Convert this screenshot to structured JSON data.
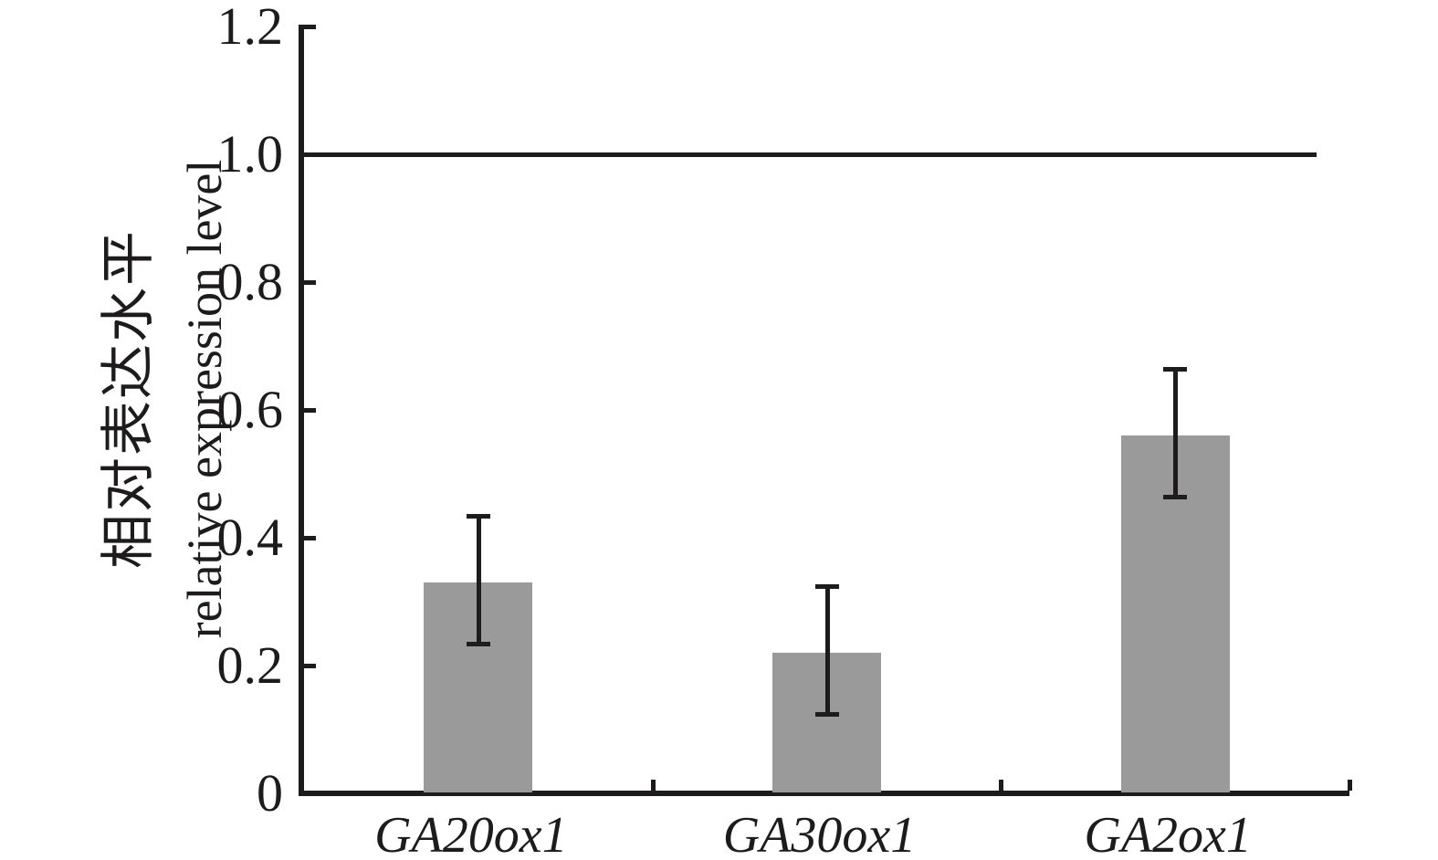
{
  "figure": {
    "background": "#ffffff",
    "ink_color": "#1d1b1c"
  },
  "y_axis": {
    "label_cn": "相对表达水平",
    "label_en": "relative expression level",
    "tick_labels": [
      "0",
      "0.2",
      "0.4",
      "0.6",
      "0.8",
      "1.0",
      "1.2"
    ],
    "tick_values": [
      0,
      0.2,
      0.4,
      0.6,
      0.8,
      1.0,
      1.2
    ]
  },
  "x_axis": {
    "categories": [
      "GA20ox1",
      "GA30ox1",
      "GA2ox1"
    ]
  },
  "chart_data": {
    "type": "bar",
    "title": "",
    "xlabel": "",
    "ylabel_cn": "相对表达水平",
    "ylabel_en": "relative expression level",
    "categories": [
      "GA20ox1",
      "GA30ox1",
      "GA2ox1"
    ],
    "values": [
      0.33,
      0.22,
      0.56
    ],
    "error_caps": [
      {
        "low": 0.235,
        "high": 0.435
      },
      {
        "low": 0.125,
        "high": 0.325
      },
      {
        "low": 0.465,
        "high": 0.665
      }
    ],
    "ylim": [
      0,
      1.2
    ],
    "yticks": [
      0,
      0.2,
      0.4,
      0.6,
      0.8,
      1.0,
      1.2
    ],
    "reference_line": 1.0,
    "grid": false,
    "legend": "none",
    "bar_color": "#9b9a9b",
    "tick_style": "inward",
    "category_label_style": "italic"
  }
}
